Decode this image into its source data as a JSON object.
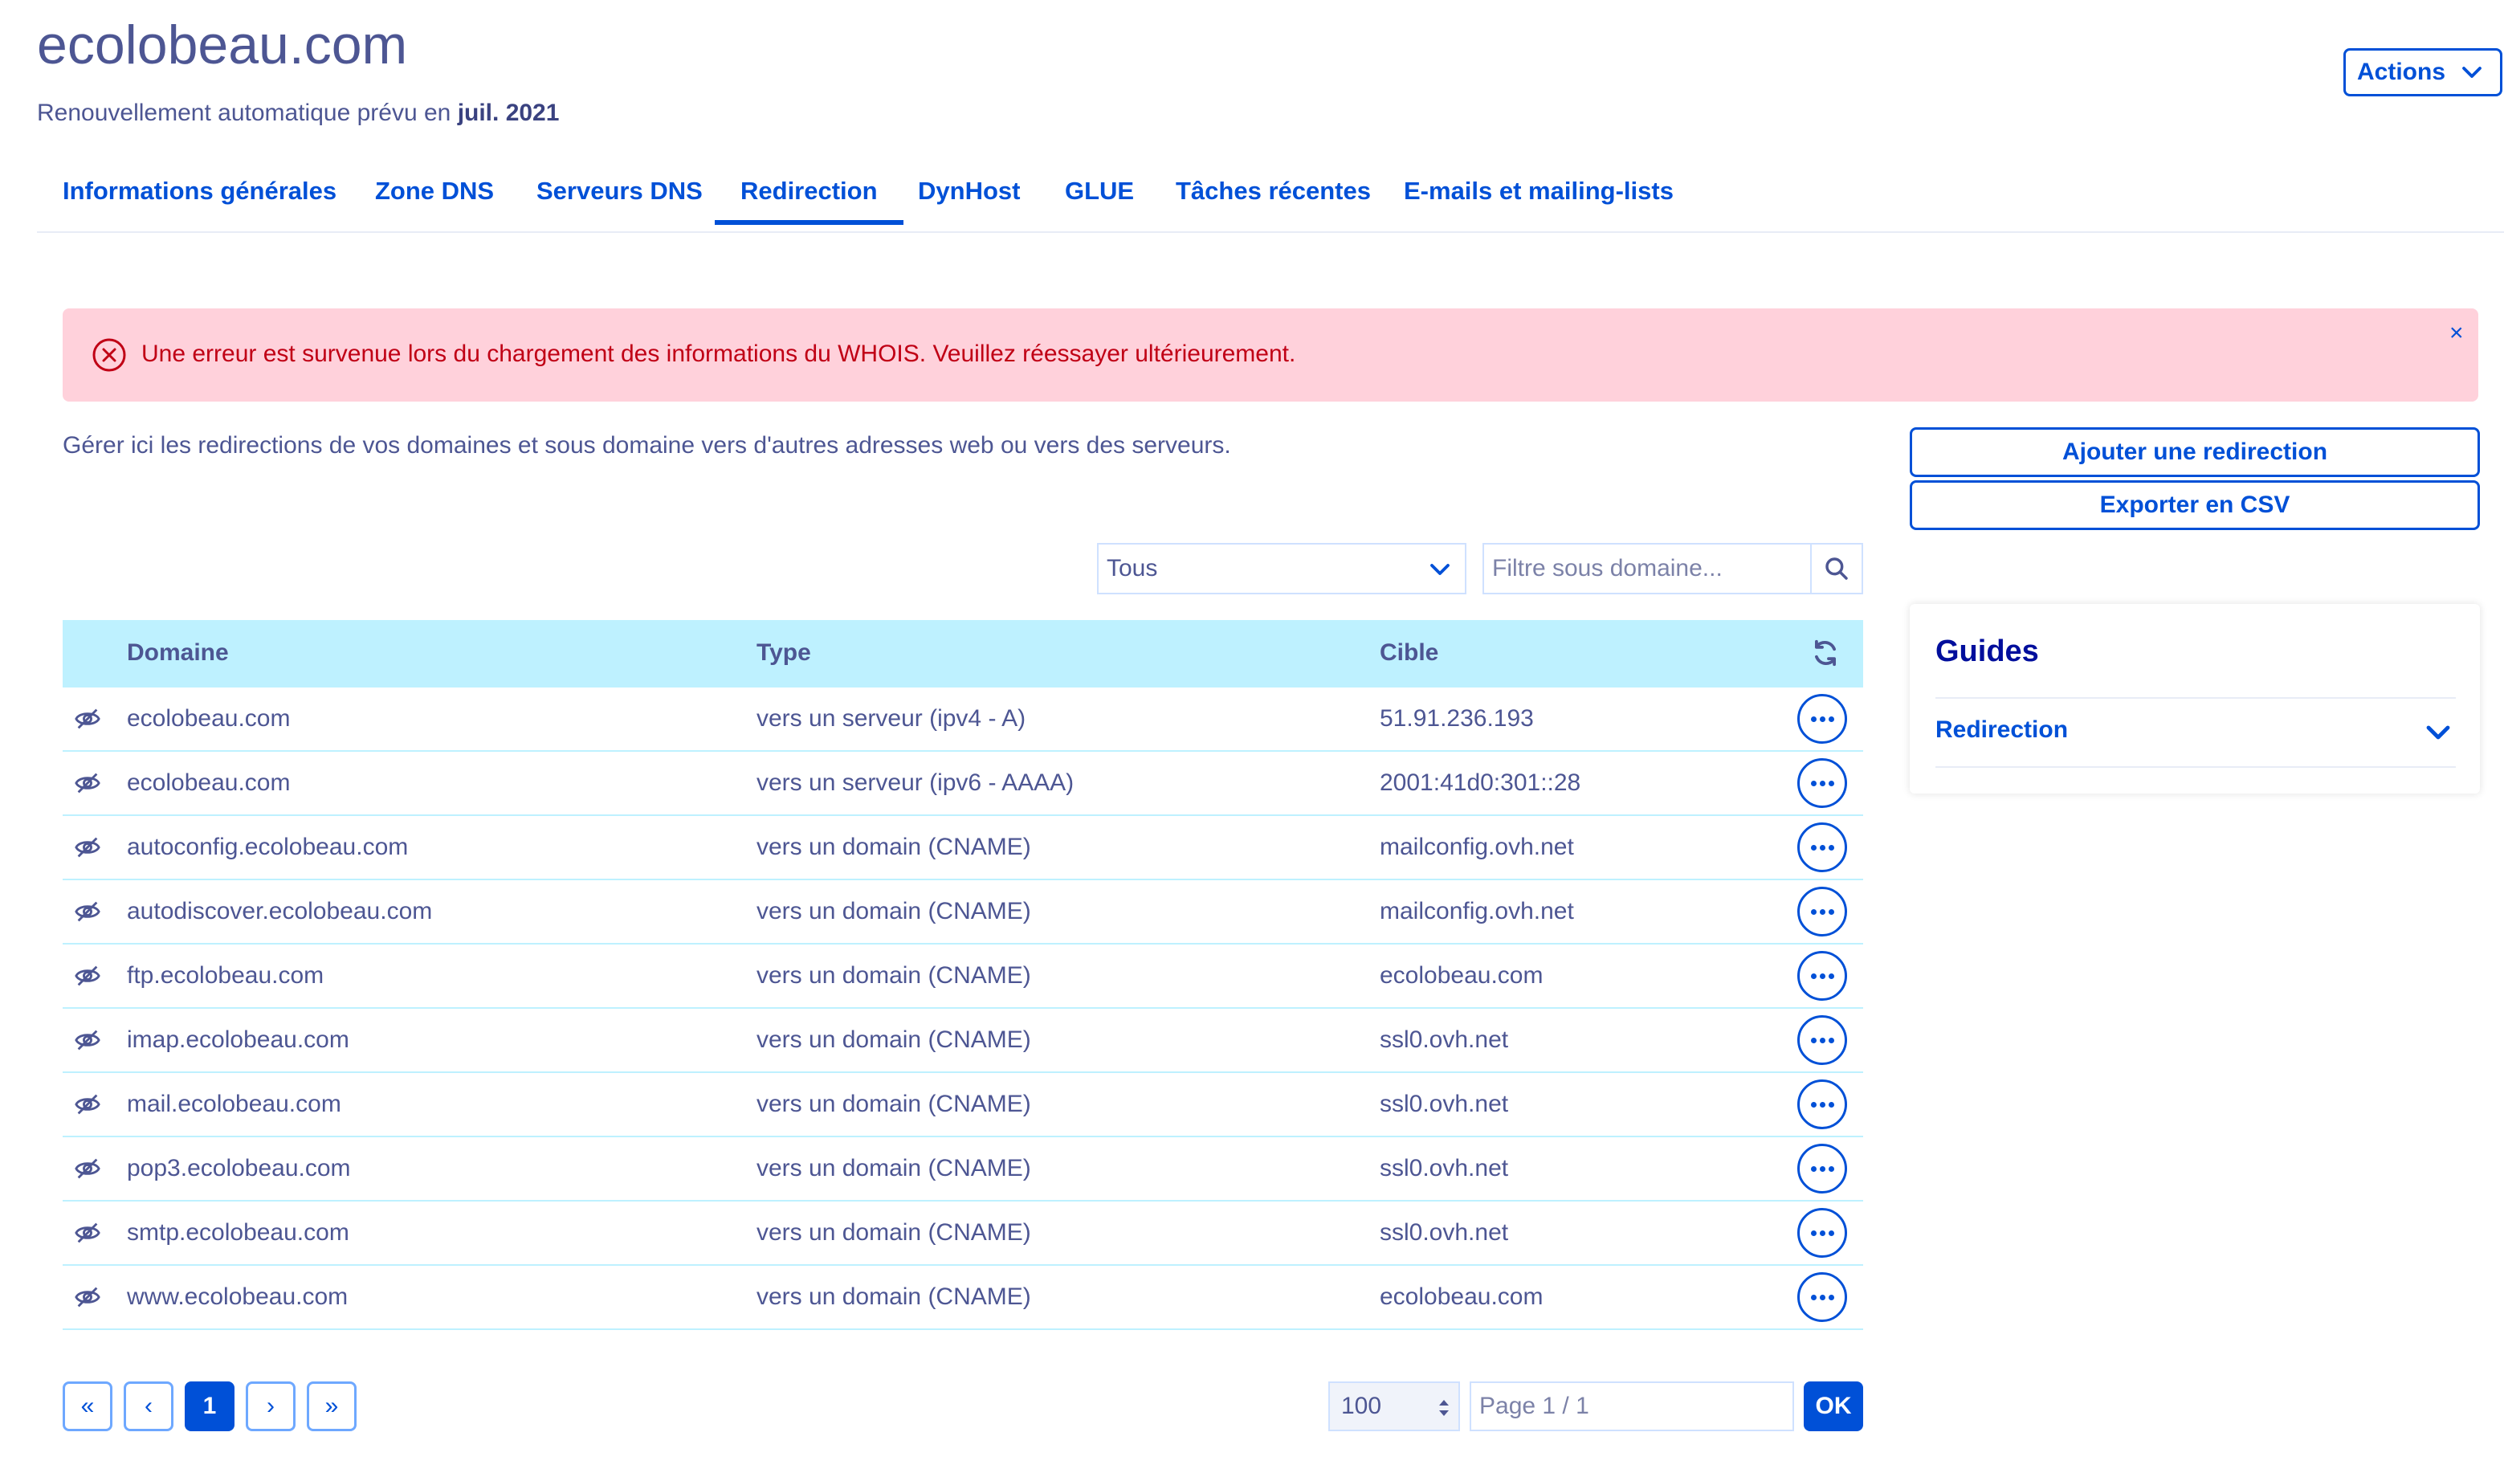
{
  "header": {
    "title": "ecolobeau.com",
    "renewal_prefix": "Renouvellement automatique prévu en",
    "renewal_date": "juil. 2021",
    "actions_label": "Actions"
  },
  "tabs": [
    {
      "label": "Informations générales"
    },
    {
      "label": "Zone DNS"
    },
    {
      "label": "Serveurs DNS"
    },
    {
      "label": "Redirection",
      "active": true
    },
    {
      "label": "DynHost"
    },
    {
      "label": "GLUE"
    },
    {
      "label": "Tâches récentes"
    },
    {
      "label": "E-mails et mailing-lists"
    }
  ],
  "alert": {
    "message": "Une erreur est survenue lors du chargement des informations du WHOIS. Veuillez réessayer ultérieurement.",
    "close_symbol": "×"
  },
  "intro": "Gérer ici les redirections de vos domaines et sous domaine vers d'autres adresses web ou vers des serveurs.",
  "buttons": {
    "add_redirect": "Ajouter une redirection",
    "export_csv": "Exporter en CSV"
  },
  "filters": {
    "type_selected": "Tous",
    "subdomain_placeholder": "Filtre sous domaine..."
  },
  "table": {
    "headers": {
      "domain": "Domaine",
      "type": "Type",
      "target": "Cible"
    },
    "rows": [
      {
        "domain": "ecolobeau.com",
        "type": "vers un serveur (ipv4 - A)",
        "target": "51.91.236.193"
      },
      {
        "domain": "ecolobeau.com",
        "type": "vers un serveur (ipv6 - AAAA)",
        "target": "2001:41d0:301::28"
      },
      {
        "domain": "autoconfig.ecolobeau.com",
        "type": "vers un domain (CNAME)",
        "target": "mailconfig.ovh.net"
      },
      {
        "domain": "autodiscover.ecolobeau.com",
        "type": "vers un domain (CNAME)",
        "target": "mailconfig.ovh.net"
      },
      {
        "domain": "ftp.ecolobeau.com",
        "type": "vers un domain (CNAME)",
        "target": "ecolobeau.com"
      },
      {
        "domain": "imap.ecolobeau.com",
        "type": "vers un domain (CNAME)",
        "target": "ssl0.ovh.net"
      },
      {
        "domain": "mail.ecolobeau.com",
        "type": "vers un domain (CNAME)",
        "target": "ssl0.ovh.net"
      },
      {
        "domain": "pop3.ecolobeau.com",
        "type": "vers un domain (CNAME)",
        "target": "ssl0.ovh.net"
      },
      {
        "domain": "smtp.ecolobeau.com",
        "type": "vers un domain (CNAME)",
        "target": "ssl0.ovh.net"
      },
      {
        "domain": "www.ecolobeau.com",
        "type": "vers un domain (CNAME)",
        "target": "ecolobeau.com"
      }
    ]
  },
  "guides": {
    "title": "Guides",
    "items": [
      {
        "label": "Redirection"
      }
    ]
  },
  "pagination": {
    "first": "«",
    "prev": "‹",
    "current": "1",
    "next": "›",
    "last": "»",
    "per_page": "100",
    "page_placeholder": "Page 1 / 1",
    "ok": "OK"
  },
  "icons": {
    "alert": "error-circle-icon",
    "row": "eye-slash-icon",
    "refresh": "refresh-icon",
    "search": "search-icon",
    "chevron": "chevron-down-icon",
    "more": "more-horizontal-icon"
  },
  "colors": {
    "primary": "#0050d7",
    "text": "#4d5693",
    "header_bg": "#bef1ff",
    "alert_bg": "#ffd1db",
    "alert_text": "#c00015"
  }
}
